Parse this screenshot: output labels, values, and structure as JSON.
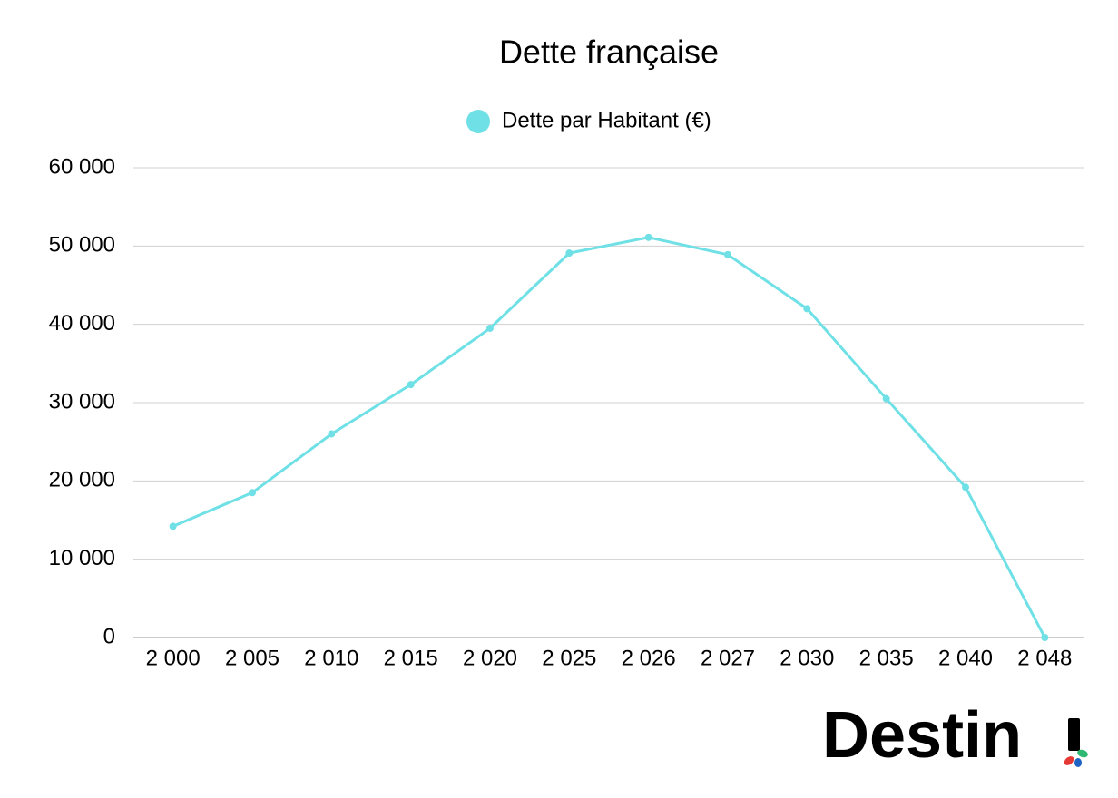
{
  "chart_data": {
    "type": "line",
    "title": "Dette française",
    "categories": [
      "2 000",
      "2 005",
      "2 010",
      "2 015",
      "2 020",
      "2 025",
      "2 026",
      "2 027",
      "2 030",
      "2 035",
      "2 040",
      "2 048"
    ],
    "series": [
      {
        "name": "Dette par Habitant (€)",
        "color": "#6ee0e6",
        "values": [
          14200,
          18500,
          26000,
          32300,
          39500,
          49100,
          51100,
          48900,
          42000,
          30500,
          19200,
          0
        ]
      }
    ],
    "ylim": [
      0,
      60000
    ],
    "yticks": [
      0,
      {
        "value": 10000,
        "label": "10 000"
      },
      {
        "value": 20000,
        "label": "20 000"
      },
      {
        "value": 30000,
        "label": "30 000"
      },
      {
        "value": 40000,
        "label": "40 000"
      },
      {
        "value": 50000,
        "label": "50 000"
      },
      {
        "value": 60000,
        "label": "60 000"
      }
    ],
    "grid": true,
    "legend": "top"
  },
  "logo": "Destin"
}
